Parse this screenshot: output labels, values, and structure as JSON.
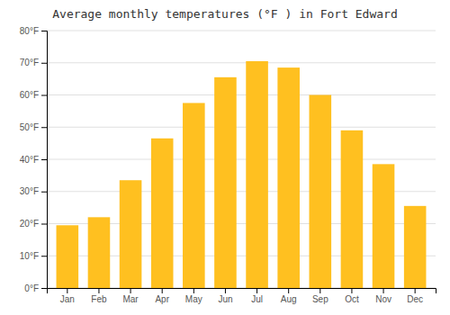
{
  "chart_data": {
    "type": "bar",
    "title": "Average monthly temperatures (°F ) in Fort Edward",
    "categories": [
      "Jan",
      "Feb",
      "Mar",
      "Apr",
      "May",
      "Jun",
      "Jul",
      "Aug",
      "Sep",
      "Oct",
      "Nov",
      "Dec"
    ],
    "values": [
      19.5,
      22.0,
      33.5,
      46.5,
      57.5,
      65.5,
      70.5,
      68.5,
      60.0,
      49.0,
      38.5,
      25.5
    ],
    "color": "#FFC020",
    "ylim": [
      0,
      80
    ],
    "yticks": [
      {
        "value": 0,
        "label": "0°F"
      },
      {
        "value": 10,
        "label": "10°F"
      },
      {
        "value": 20,
        "label": "20°F"
      },
      {
        "value": 30,
        "label": "30°F"
      },
      {
        "value": 40,
        "label": "40°F"
      },
      {
        "value": 50,
        "label": "50°F"
      },
      {
        "value": 60,
        "label": "60°F"
      },
      {
        "value": 70,
        "label": "70°F"
      },
      {
        "value": 80,
        "label": "80°F"
      }
    ],
    "grid": true
  }
}
